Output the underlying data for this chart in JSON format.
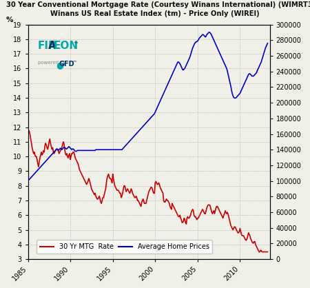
{
  "title_line1": "30 Year Conventional Mortgage Rate (Courtesy Winans International) (WIMRT30Y) vs.",
  "title_line2": "Winans US Real Estate Index (tm) - Price Only (WIREI)",
  "ylabel_left": "%",
  "xlim": [
    1985,
    2013.5
  ],
  "ylim_left": [
    3,
    19
  ],
  "ylim_right": [
    0,
    300000
  ],
  "yticks_left": [
    3,
    4,
    5,
    6,
    7,
    8,
    9,
    10,
    11,
    12,
    13,
    14,
    15,
    16,
    17,
    18,
    19
  ],
  "yticks_right": [
    0,
    20000,
    40000,
    60000,
    80000,
    100000,
    120000,
    140000,
    160000,
    180000,
    200000,
    220000,
    240000,
    260000,
    280000,
    300000
  ],
  "xticks": [
    1985,
    1990,
    1995,
    2000,
    2005,
    2010
  ],
  "legend_mtg": "30 Yr MTG  Rate",
  "legend_home": "Average Home Prices",
  "color_mtg": "#cc0000",
  "color_home": "#0000cc",
  "bg_color": "#f0f0e8",
  "grid_color": "#aaaaaa",
  "mortgage_years": [
    1985.0,
    1985.08,
    1985.17,
    1985.25,
    1985.33,
    1985.42,
    1985.5,
    1985.58,
    1985.67,
    1985.75,
    1985.83,
    1985.92,
    1986.0,
    1986.08,
    1986.17,
    1986.25,
    1986.33,
    1986.42,
    1986.5,
    1986.58,
    1986.67,
    1986.75,
    1986.83,
    1986.92,
    1987.0,
    1987.08,
    1987.17,
    1987.25,
    1987.33,
    1987.42,
    1987.5,
    1987.58,
    1987.67,
    1987.75,
    1987.83,
    1987.92,
    1988.0,
    1988.08,
    1988.17,
    1988.25,
    1988.33,
    1988.42,
    1988.5,
    1988.58,
    1988.67,
    1988.75,
    1988.83,
    1988.92,
    1989.0,
    1989.08,
    1989.17,
    1989.25,
    1989.33,
    1989.42,
    1989.5,
    1989.58,
    1989.67,
    1989.75,
    1989.83,
    1989.92,
    1990.0,
    1990.08,
    1990.17,
    1990.25,
    1990.33,
    1990.42,
    1990.5,
    1990.58,
    1990.67,
    1990.75,
    1990.83,
    1990.92,
    1991.0,
    1991.08,
    1991.17,
    1991.25,
    1991.33,
    1991.42,
    1991.5,
    1991.58,
    1991.67,
    1991.75,
    1991.83,
    1991.92,
    1992.0,
    1992.08,
    1992.17,
    1992.25,
    1992.33,
    1992.42,
    1992.5,
    1992.58,
    1992.67,
    1992.75,
    1992.83,
    1992.92,
    1993.0,
    1993.08,
    1993.17,
    1993.25,
    1993.33,
    1993.42,
    1993.5,
    1993.58,
    1993.67,
    1993.75,
    1993.83,
    1993.92,
    1994.0,
    1994.08,
    1994.17,
    1994.25,
    1994.33,
    1994.42,
    1994.5,
    1994.58,
    1994.67,
    1994.75,
    1994.83,
    1994.92,
    1995.0,
    1995.08,
    1995.17,
    1995.25,
    1995.33,
    1995.42,
    1995.5,
    1995.58,
    1995.67,
    1995.75,
    1995.83,
    1995.92,
    1996.0,
    1996.08,
    1996.17,
    1996.25,
    1996.33,
    1996.42,
    1996.5,
    1996.58,
    1996.67,
    1996.75,
    1996.83,
    1996.92,
    1997.0,
    1997.08,
    1997.17,
    1997.25,
    1997.33,
    1997.42,
    1997.5,
    1997.58,
    1997.67,
    1997.75,
    1997.83,
    1997.92,
    1998.0,
    1998.08,
    1998.17,
    1998.25,
    1998.33,
    1998.42,
    1998.5,
    1998.58,
    1998.67,
    1998.75,
    1998.83,
    1998.92,
    1999.0,
    1999.08,
    1999.17,
    1999.25,
    1999.33,
    1999.42,
    1999.5,
    1999.58,
    1999.67,
    1999.75,
    1999.83,
    1999.92,
    2000.0,
    2000.08,
    2000.17,
    2000.25,
    2000.33,
    2000.42,
    2000.5,
    2000.58,
    2000.67,
    2000.75,
    2000.83,
    2000.92,
    2001.0,
    2001.08,
    2001.17,
    2001.25,
    2001.33,
    2001.42,
    2001.5,
    2001.58,
    2001.67,
    2001.75,
    2001.83,
    2001.92,
    2002.0,
    2002.08,
    2002.17,
    2002.25,
    2002.33,
    2002.42,
    2002.5,
    2002.58,
    2002.67,
    2002.75,
    2002.83,
    2002.92,
    2003.0,
    2003.08,
    2003.17,
    2003.25,
    2003.33,
    2003.42,
    2003.5,
    2003.58,
    2003.67,
    2003.75,
    2003.83,
    2003.92,
    2004.0,
    2004.08,
    2004.17,
    2004.25,
    2004.33,
    2004.42,
    2004.5,
    2004.58,
    2004.67,
    2004.75,
    2004.83,
    2004.92,
    2005.0,
    2005.08,
    2005.17,
    2005.25,
    2005.33,
    2005.42,
    2005.5,
    2005.58,
    2005.67,
    2005.75,
    2005.83,
    2005.92,
    2006.0,
    2006.08,
    2006.17,
    2006.25,
    2006.33,
    2006.42,
    2006.5,
    2006.58,
    2006.67,
    2006.75,
    2006.83,
    2006.92,
    2007.0,
    2007.08,
    2007.17,
    2007.25,
    2007.33,
    2007.42,
    2007.5,
    2007.58,
    2007.67,
    2007.75,
    2007.83,
    2007.92,
    2008.0,
    2008.08,
    2008.17,
    2008.25,
    2008.33,
    2008.42,
    2008.5,
    2008.58,
    2008.67,
    2008.75,
    2008.83,
    2008.92,
    2009.0,
    2009.08,
    2009.17,
    2009.25,
    2009.33,
    2009.42,
    2009.5,
    2009.58,
    2009.67,
    2009.75,
    2009.83,
    2009.92,
    2010.0,
    2010.08,
    2010.17,
    2010.25,
    2010.33,
    2010.42,
    2010.5,
    2010.58,
    2010.67,
    2010.75,
    2010.83,
    2010.92,
    2011.0,
    2011.08,
    2011.17,
    2011.25,
    2011.33,
    2011.42,
    2011.5,
    2011.58,
    2011.67,
    2011.75,
    2011.83,
    2011.92,
    2012.0,
    2012.08,
    2012.17,
    2012.25,
    2012.33,
    2012.42,
    2012.5,
    2012.58,
    2012.67,
    2012.75,
    2012.83,
    2012.92,
    2013.0,
    2013.08,
    2013.17,
    2013.25
  ],
  "mortgage_rates": [
    11.6,
    11.8,
    11.7,
    11.5,
    11.2,
    10.9,
    10.6,
    10.4,
    10.2,
    10.3,
    10.1,
    10.0,
    10.0,
    9.8,
    9.5,
    9.3,
    9.6,
    9.9,
    10.1,
    10.3,
    10.1,
    10.2,
    10.4,
    10.3,
    10.7,
    10.9,
    10.8,
    10.6,
    10.5,
    10.7,
    11.0,
    11.2,
    10.9,
    10.7,
    10.5,
    10.6,
    10.3,
    10.2,
    10.3,
    10.4,
    10.5,
    10.5,
    10.5,
    10.4,
    10.2,
    10.3,
    10.4,
    10.5,
    10.6,
    10.8,
    11.0,
    10.9,
    10.5,
    10.2,
    10.1,
    10.2,
    10.0,
    9.9,
    10.1,
    10.2,
    9.8,
    10.0,
    10.2,
    10.2,
    10.3,
    10.3,
    10.1,
    9.9,
    9.8,
    9.7,
    9.6,
    9.5,
    9.3,
    9.1,
    9.0,
    8.9,
    8.8,
    8.7,
    8.6,
    8.5,
    8.4,
    8.3,
    8.2,
    8.1,
    8.2,
    8.3,
    8.5,
    8.4,
    8.2,
    8.0,
    7.8,
    7.7,
    7.6,
    7.5,
    7.4,
    7.5,
    7.3,
    7.2,
    7.1,
    7.1,
    7.2,
    7.3,
    7.1,
    6.9,
    6.8,
    7.0,
    7.2,
    7.2,
    7.4,
    7.6,
    7.8,
    8.2,
    8.5,
    8.7,
    8.8,
    8.6,
    8.5,
    8.5,
    8.4,
    8.2,
    8.8,
    8.5,
    8.2,
    8.0,
    7.9,
    7.8,
    7.7,
    7.7,
    7.7,
    7.6,
    7.5,
    7.5,
    7.2,
    7.3,
    7.5,
    7.8,
    8.0,
    8.0,
    7.8,
    7.6,
    7.7,
    7.8,
    7.7,
    7.6,
    7.5,
    7.6,
    7.8,
    7.7,
    7.5,
    7.4,
    7.3,
    7.2,
    7.2,
    7.3,
    7.2,
    7.0,
    7.0,
    6.9,
    6.8,
    6.7,
    6.6,
    6.9,
    7.0,
    7.1,
    6.9,
    6.8,
    6.8,
    6.8,
    7.0,
    7.2,
    7.4,
    7.6,
    7.7,
    7.8,
    7.9,
    7.9,
    7.8,
    7.6,
    7.5,
    7.5,
    8.2,
    8.3,
    8.2,
    8.1,
    8.1,
    8.2,
    8.1,
    7.9,
    7.8,
    7.7,
    7.6,
    7.5,
    7.0,
    6.9,
    6.9,
    7.0,
    7.1,
    7.0,
    7.0,
    6.9,
    6.8,
    6.6,
    6.5,
    6.4,
    6.8,
    6.7,
    6.6,
    6.5,
    6.4,
    6.3,
    6.2,
    6.1,
    6.0,
    5.9,
    5.9,
    6.0,
    5.8,
    5.7,
    5.5,
    5.5,
    5.6,
    5.8,
    5.7,
    5.5,
    5.4,
    5.8,
    5.9,
    5.8,
    5.8,
    5.9,
    6.0,
    6.2,
    6.3,
    6.4,
    6.3,
    6.0,
    5.9,
    5.9,
    5.8,
    5.7,
    5.8,
    5.8,
    5.9,
    6.0,
    6.1,
    6.2,
    6.3,
    6.4,
    6.3,
    6.2,
    6.1,
    6.1,
    6.3,
    6.5,
    6.6,
    6.7,
    6.7,
    6.7,
    6.6,
    6.4,
    6.2,
    6.1,
    6.2,
    6.3,
    6.1,
    6.3,
    6.5,
    6.6,
    6.6,
    6.5,
    6.4,
    6.3,
    6.2,
    6.1,
    6.0,
    5.9,
    5.8,
    6.0,
    6.1,
    6.3,
    6.2,
    6.1,
    6.2,
    6.1,
    5.9,
    5.7,
    5.5,
    5.3,
    5.2,
    5.1,
    5.0,
    5.1,
    5.2,
    5.2,
    5.1,
    5.0,
    4.9,
    4.8,
    4.8,
    4.9,
    5.1,
    4.9,
    4.7,
    4.6,
    4.6,
    4.6,
    4.5,
    4.4,
    4.3,
    4.3,
    4.4,
    4.6,
    4.8,
    4.7,
    4.6,
    4.4,
    4.3,
    4.2,
    4.1,
    4.1,
    4.2,
    4.2,
    4.0,
    3.9,
    3.8,
    3.7,
    3.6,
    3.5,
    3.5,
    3.6,
    3.6,
    3.5,
    3.5,
    3.5,
    3.5,
    3.5,
    3.5,
    3.5,
    3.5,
    3.5
  ],
  "home_years": [
    1985.0,
    1985.08,
    1985.17,
    1985.25,
    1985.33,
    1985.42,
    1985.5,
    1985.58,
    1985.67,
    1985.75,
    1985.83,
    1985.92,
    1986.0,
    1986.08,
    1986.17,
    1986.25,
    1986.33,
    1986.42,
    1986.5,
    1986.58,
    1986.67,
    1986.75,
    1986.83,
    1986.92,
    1987.0,
    1987.08,
    1987.17,
    1987.25,
    1987.33,
    1987.42,
    1987.5,
    1987.58,
    1987.67,
    1987.75,
    1987.83,
    1987.92,
    1988.0,
    1988.08,
    1988.17,
    1988.25,
    1988.33,
    1988.42,
    1988.5,
    1988.58,
    1988.67,
    1988.75,
    1988.83,
    1988.92,
    1989.0,
    1989.08,
    1989.17,
    1989.25,
    1989.33,
    1989.42,
    1989.5,
    1989.58,
    1989.67,
    1989.75,
    1989.83,
    1989.92,
    1990.0,
    1990.08,
    1990.17,
    1990.25,
    1990.33,
    1990.42,
    1990.5,
    1990.58,
    1990.67,
    1990.75,
    1990.83,
    1990.92,
    1991.0,
    1991.08,
    1991.17,
    1991.25,
    1991.33,
    1991.42,
    1991.5,
    1991.58,
    1991.67,
    1991.75,
    1991.83,
    1991.92,
    1992.0,
    1992.08,
    1992.17,
    1992.25,
    1992.33,
    1992.42,
    1992.5,
    1992.58,
    1992.67,
    1992.75,
    1992.83,
    1992.92,
    1993.0,
    1993.08,
    1993.17,
    1993.25,
    1993.33,
    1993.42,
    1993.5,
    1993.58,
    1993.67,
    1993.75,
    1993.83,
    1993.92,
    1994.0,
    1994.08,
    1994.17,
    1994.25,
    1994.33,
    1994.42,
    1994.5,
    1994.58,
    1994.67,
    1994.75,
    1994.83,
    1994.92,
    1995.0,
    1995.08,
    1995.17,
    1995.25,
    1995.33,
    1995.42,
    1995.5,
    1995.58,
    1995.67,
    1995.75,
    1995.83,
    1995.92,
    1996.0,
    1996.08,
    1996.17,
    1996.25,
    1996.33,
    1996.42,
    1996.5,
    1996.58,
    1996.67,
    1996.75,
    1996.83,
    1996.92,
    1997.0,
    1997.08,
    1997.17,
    1997.25,
    1997.33,
    1997.42,
    1997.5,
    1997.58,
    1997.67,
    1997.75,
    1997.83,
    1997.92,
    1998.0,
    1998.08,
    1998.17,
    1998.25,
    1998.33,
    1998.42,
    1998.5,
    1998.58,
    1998.67,
    1998.75,
    1998.83,
    1998.92,
    1999.0,
    1999.08,
    1999.17,
    1999.25,
    1999.33,
    1999.42,
    1999.5,
    1999.58,
    1999.67,
    1999.75,
    1999.83,
    1999.92,
    2000.0,
    2000.08,
    2000.17,
    2000.25,
    2000.33,
    2000.42,
    2000.5,
    2000.58,
    2000.67,
    2000.75,
    2000.83,
    2000.92,
    2001.0,
    2001.08,
    2001.17,
    2001.25,
    2001.33,
    2001.42,
    2001.5,
    2001.58,
    2001.67,
    2001.75,
    2001.83,
    2001.92,
    2002.0,
    2002.08,
    2002.17,
    2002.25,
    2002.33,
    2002.42,
    2002.5,
    2002.58,
    2002.67,
    2002.75,
    2002.83,
    2002.92,
    2003.0,
    2003.08,
    2003.17,
    2003.25,
    2003.33,
    2003.42,
    2003.5,
    2003.58,
    2003.67,
    2003.75,
    2003.83,
    2003.92,
    2004.0,
    2004.08,
    2004.17,
    2004.25,
    2004.33,
    2004.42,
    2004.5,
    2004.58,
    2004.67,
    2004.75,
    2004.83,
    2004.92,
    2005.0,
    2005.08,
    2005.17,
    2005.25,
    2005.33,
    2005.42,
    2005.5,
    2005.58,
    2005.67,
    2005.75,
    2005.83,
    2005.92,
    2006.0,
    2006.08,
    2006.17,
    2006.25,
    2006.33,
    2006.42,
    2006.5,
    2006.58,
    2006.67,
    2006.75,
    2006.83,
    2006.92,
    2007.0,
    2007.08,
    2007.17,
    2007.25,
    2007.33,
    2007.42,
    2007.5,
    2007.58,
    2007.67,
    2007.75,
    2007.83,
    2007.92,
    2008.0,
    2008.08,
    2008.17,
    2008.25,
    2008.33,
    2008.42,
    2008.5,
    2008.58,
    2008.67,
    2008.75,
    2008.83,
    2008.92,
    2009.0,
    2009.08,
    2009.17,
    2009.25,
    2009.33,
    2009.42,
    2009.5,
    2009.58,
    2009.67,
    2009.75,
    2009.83,
    2009.92,
    2010.0,
    2010.08,
    2010.17,
    2010.25,
    2010.33,
    2010.42,
    2010.5,
    2010.58,
    2010.67,
    2010.75,
    2010.83,
    2010.92,
    2011.0,
    2011.08,
    2011.17,
    2011.25,
    2011.33,
    2011.42,
    2011.5,
    2011.58,
    2011.67,
    2011.75,
    2011.83,
    2011.92,
    2012.0,
    2012.08,
    2012.17,
    2012.25,
    2012.33,
    2012.42,
    2012.5,
    2012.58,
    2012.67,
    2012.75,
    2012.83,
    2012.92,
    2013.0,
    2013.08,
    2013.17,
    2013.25
  ],
  "home_prices": [
    100000,
    101000,
    102000,
    103000,
    104000,
    105000,
    106000,
    107000,
    108000,
    109000,
    110000,
    111000,
    112000,
    113000,
    114000,
    115000,
    116000,
    117000,
    118000,
    119000,
    120000,
    121000,
    122000,
    123000,
    124000,
    125000,
    126000,
    127000,
    128000,
    129000,
    130000,
    131000,
    132000,
    133000,
    134000,
    135000,
    136000,
    137000,
    138000,
    139000,
    140000,
    141000,
    140000,
    139000,
    140000,
    141000,
    142000,
    141000,
    140000,
    141000,
    142000,
    143000,
    143000,
    142000,
    141000,
    141000,
    142000,
    143000,
    144000,
    143000,
    142000,
    141000,
    140000,
    141000,
    141000,
    140000,
    139000,
    138000,
    138000,
    138000,
    139000,
    139000,
    139000,
    139000,
    139000,
    139000,
    139000,
    139000,
    139000,
    139000,
    139000,
    139000,
    139000,
    139000,
    139000,
    139000,
    139000,
    139000,
    139000,
    139000,
    139000,
    139000,
    139000,
    139000,
    139000,
    139000,
    140000,
    140000,
    140000,
    140000,
    140000,
    140000,
    140000,
    140000,
    140000,
    140000,
    140000,
    140000,
    140000,
    140000,
    140000,
    140000,
    140000,
    140000,
    140000,
    140000,
    140000,
    140000,
    140000,
    140000,
    140000,
    140000,
    140000,
    140000,
    140000,
    140000,
    140000,
    140000,
    140000,
    140000,
    140000,
    140000,
    140000,
    140000,
    141000,
    142000,
    143000,
    144000,
    145000,
    146000,
    147000,
    148000,
    149000,
    150000,
    151000,
    152000,
    153000,
    154000,
    155000,
    156000,
    157000,
    158000,
    159000,
    160000,
    161000,
    162000,
    163000,
    164000,
    165000,
    166000,
    167000,
    168000,
    169000,
    170000,
    171000,
    172000,
    173000,
    174000,
    175000,
    176000,
    177000,
    178000,
    179000,
    180000,
    181000,
    182000,
    183000,
    184000,
    185000,
    186000,
    188000,
    190000,
    192000,
    194000,
    196000,
    198000,
    200000,
    202000,
    204000,
    206000,
    208000,
    210000,
    212000,
    214000,
    216000,
    218000,
    220000,
    222000,
    224000,
    226000,
    228000,
    230000,
    232000,
    234000,
    236000,
    238000,
    240000,
    242000,
    244000,
    246000,
    248000,
    250000,
    252000,
    252000,
    251000,
    250000,
    248000,
    246000,
    244000,
    242000,
    242000,
    243000,
    244000,
    246000,
    248000,
    250000,
    252000,
    254000,
    256000,
    258000,
    261000,
    264000,
    267000,
    270000,
    272000,
    274000,
    276000,
    277000,
    278000,
    278000,
    279000,
    280000,
    282000,
    283000,
    284000,
    285000,
    286000,
    287000,
    287000,
    286000,
    285000,
    284000,
    285000,
    287000,
    288000,
    289000,
    290000,
    290000,
    289000,
    288000,
    286000,
    284000,
    282000,
    280000,
    278000,
    276000,
    274000,
    272000,
    270000,
    268000,
    266000,
    264000,
    262000,
    260000,
    258000,
    256000,
    254000,
    252000,
    250000,
    248000,
    246000,
    244000,
    241000,
    237000,
    233000,
    229000,
    225000,
    221000,
    216000,
    212000,
    209000,
    207000,
    206000,
    206000,
    206000,
    207000,
    208000,
    209000,
    210000,
    211000,
    212000,
    214000,
    216000,
    218000,
    220000,
    222000,
    224000,
    226000,
    228000,
    230000,
    232000,
    234000,
    236000,
    237000,
    237000,
    236000,
    235000,
    234000,
    234000,
    234000,
    235000,
    236000,
    237000,
    238000,
    240000,
    242000,
    244000,
    246000,
    248000,
    250000,
    252000,
    255000,
    258000,
    261000,
    264000,
    267000,
    270000,
    272000,
    274000,
    276000
  ]
}
